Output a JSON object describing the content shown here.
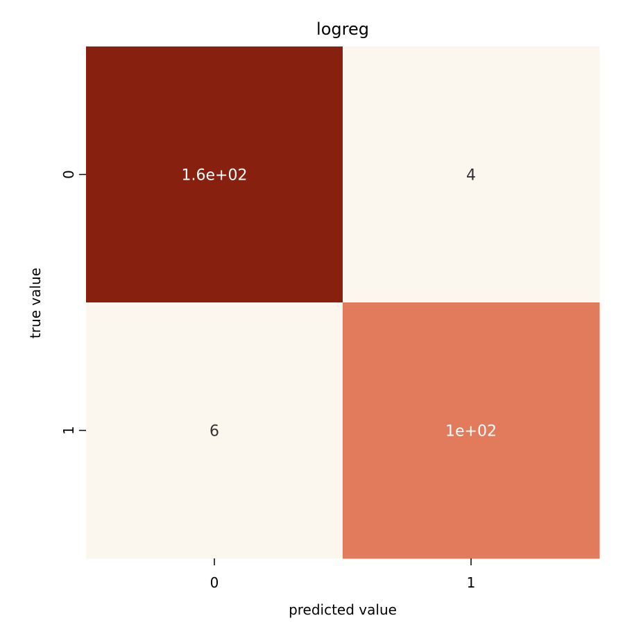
{
  "chart_data": {
    "type": "heatmap",
    "title": "logreg",
    "xlabel": "predicted value",
    "ylabel": "true value",
    "x_categories": [
      "0",
      "1"
    ],
    "y_categories": [
      "0",
      "1"
    ],
    "values": [
      [
        160,
        4
      ],
      [
        6,
        100
      ]
    ],
    "annotations": [
      [
        "1.6e+02",
        "4"
      ],
      [
        "6",
        "1e+02"
      ]
    ],
    "colormap": "Reds-like",
    "value_range": [
      4,
      160
    ],
    "colorbar": false,
    "grid": false,
    "cell_colors": [
      [
        "#88200f",
        "#fcf7ee"
      ],
      [
        "#fcf7ee",
        "#e17b5c"
      ]
    ],
    "annotation_colors": [
      [
        "#ffffff",
        "#333333"
      ],
      [
        "#333333",
        "#ffffff"
      ]
    ]
  }
}
